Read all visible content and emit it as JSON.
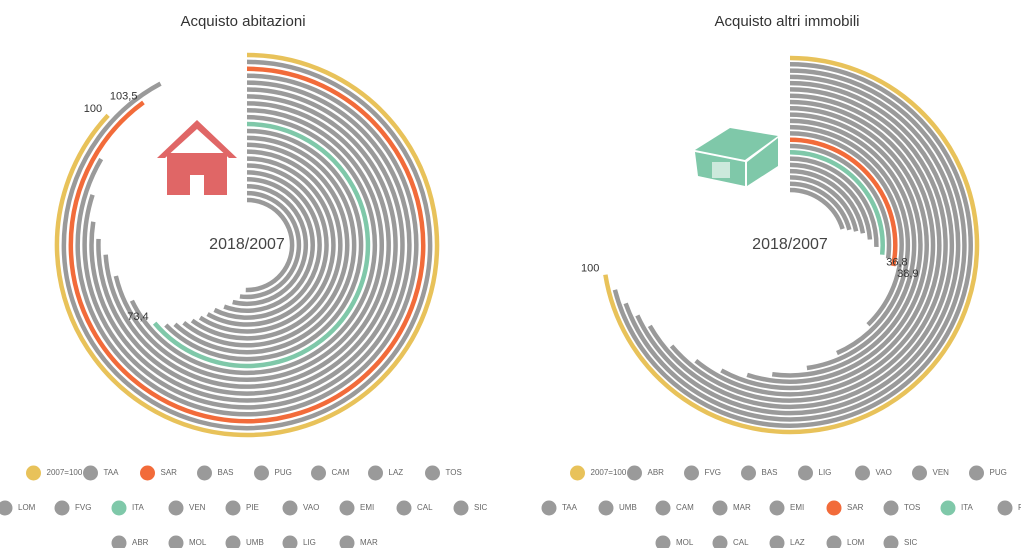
{
  "chart_data": [
    {
      "type": "radial_bar",
      "title": "Acquisto abitazioni",
      "center_label": "2018/2007",
      "alim": [
        0,
        115
      ],
      "series": [
        {
          "name": "2007=100",
          "color": "#e8c25a",
          "value": 100,
          "value_label": "100"
        },
        {
          "name": "TAA",
          "color": "#9a9a9a",
          "value": 106
        },
        {
          "name": "SAR",
          "color": "#f26b3a",
          "value": 103.5,
          "value_label": "103,5"
        },
        {
          "name": "BAS",
          "color": "#9a9a9a",
          "value": 96
        },
        {
          "name": "PUG",
          "color": "#9a9a9a",
          "value": 92
        },
        {
          "name": "CAM",
          "color": "#9a9a9a",
          "value": 89
        },
        {
          "name": "LAZ",
          "color": "#9a9a9a",
          "value": 87
        },
        {
          "name": "TOS",
          "color": "#9a9a9a",
          "value": 85
        },
        {
          "name": "LOM",
          "color": "#9a9a9a",
          "value": 82
        },
        {
          "name": "FVG",
          "color": "#9a9a9a",
          "value": 78
        },
        {
          "name": "ITA",
          "color": "#7fc8a9",
          "value": 73.4,
          "value_label": "73,4"
        },
        {
          "name": "VEN",
          "color": "#9a9a9a",
          "value": 72
        },
        {
          "name": "PIE",
          "color": "#9a9a9a",
          "value": 71
        },
        {
          "name": "VAO",
          "color": "#9a9a9a",
          "value": 70
        },
        {
          "name": "EMI",
          "color": "#9a9a9a",
          "value": 69
        },
        {
          "name": "CAL",
          "color": "#9a9a9a",
          "value": 68
        },
        {
          "name": "SIC",
          "color": "#9a9a9a",
          "value": 67
        },
        {
          "name": "ABR",
          "color": "#9a9a9a",
          "value": 66
        },
        {
          "name": "MOL",
          "color": "#9a9a9a",
          "value": 64
        },
        {
          "name": "UMB",
          "color": "#9a9a9a",
          "value": 62
        },
        {
          "name": "LIG",
          "color": "#9a9a9a",
          "value": 60
        },
        {
          "name": "MAR",
          "color": "#9a9a9a",
          "value": 58
        }
      ]
    },
    {
      "type": "radial_bar",
      "title": "Acquisto altri immobili",
      "center_label": "2018/2007",
      "alim": [
        0,
        138
      ],
      "series": [
        {
          "name": "2007=100",
          "color": "#e8c25a",
          "value": 100,
          "value_label": "100"
        },
        {
          "name": "ABR",
          "color": "#9a9a9a",
          "value": 98
        },
        {
          "name": "FVG",
          "color": "#9a9a9a",
          "value": 96
        },
        {
          "name": "BAS",
          "color": "#9a9a9a",
          "value": 94
        },
        {
          "name": "LIG",
          "color": "#9a9a9a",
          "value": 92
        },
        {
          "name": "VAO",
          "color": "#9a9a9a",
          "value": 88
        },
        {
          "name": "VEN",
          "color": "#9a9a9a",
          "value": 84
        },
        {
          "name": "PUG",
          "color": "#9a9a9a",
          "value": 80
        },
        {
          "name": "TAA",
          "color": "#9a9a9a",
          "value": 76
        },
        {
          "name": "UMB",
          "color": "#9a9a9a",
          "value": 72
        },
        {
          "name": "CAM",
          "color": "#9a9a9a",
          "value": 66
        },
        {
          "name": "MAR",
          "color": "#9a9a9a",
          "value": 60
        },
        {
          "name": "EMI",
          "color": "#9a9a9a",
          "value": 52
        },
        {
          "name": "SAR",
          "color": "#f26b3a",
          "value": 38.9,
          "value_label": "38,9"
        },
        {
          "name": "TOS",
          "color": "#9a9a9a",
          "value": 37.5
        },
        {
          "name": "ITA",
          "color": "#7fc8a9",
          "value": 36.8,
          "value_label": "36,8"
        },
        {
          "name": "PIE",
          "color": "#9a9a9a",
          "value": 35
        },
        {
          "name": "MOL",
          "color": "#9a9a9a",
          "value": 33
        },
        {
          "name": "CAL",
          "color": "#9a9a9a",
          "value": 31
        },
        {
          "name": "LAZ",
          "color": "#9a9a9a",
          "value": 30
        },
        {
          "name": "LOM",
          "color": "#9a9a9a",
          "value": 29
        },
        {
          "name": "SIC",
          "color": "#9a9a9a",
          "value": 28
        }
      ]
    }
  ]
}
